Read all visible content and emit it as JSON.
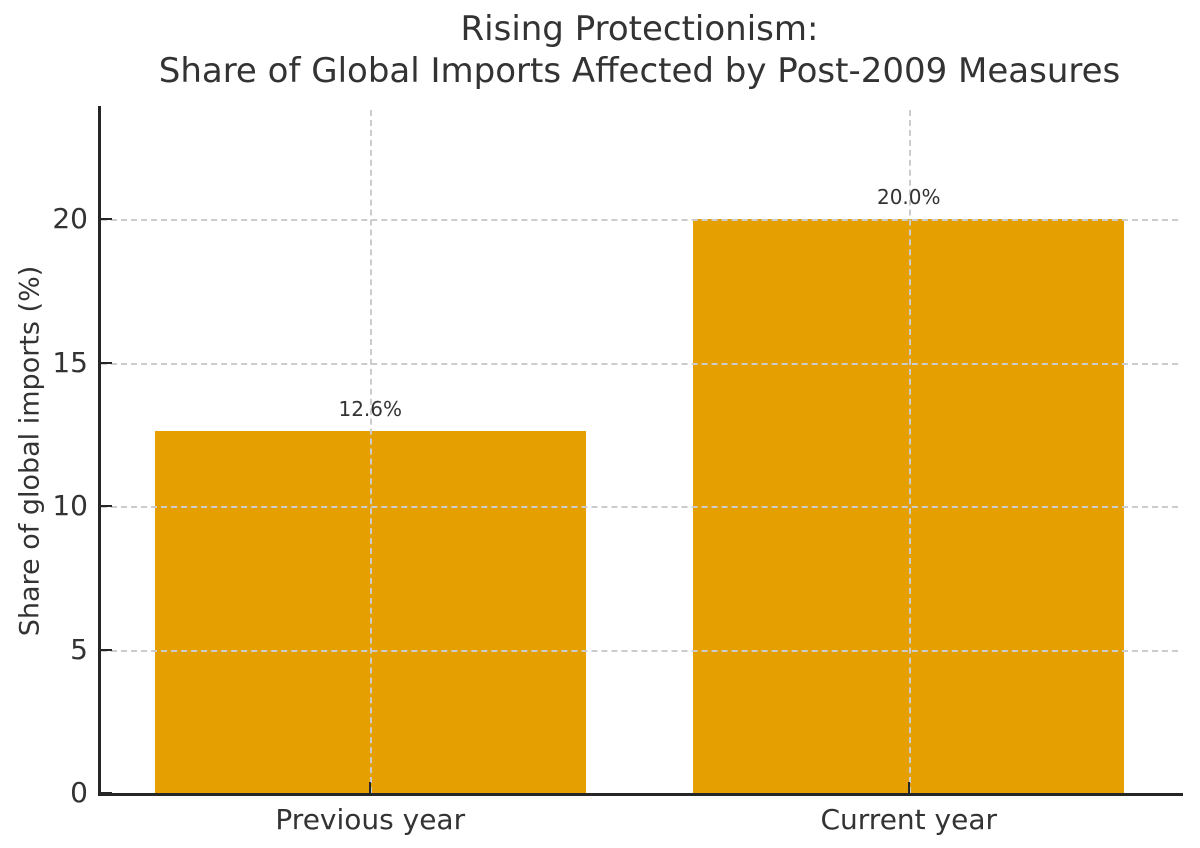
{
  "chart_data": {
    "type": "bar",
    "title_line1": "Rising Protectionism:",
    "title_line2": "Share of Global Imports Affected by Post-2009 Measures",
    "categories": [
      "Previous year",
      "Current year"
    ],
    "values": [
      12.6,
      20.0
    ],
    "value_labels": [
      "12.6%",
      "20.0%"
    ],
    "xlabel": "",
    "ylabel": "Share of global imports (%)",
    "yticks": [
      0,
      5,
      10,
      15,
      20
    ],
    "ylim": [
      0,
      23.8
    ],
    "bar_width_fraction": 0.8,
    "bar_color": "#E69F00",
    "grid": "dashed",
    "grid_color": "#cccccc",
    "grid_above_bars": true,
    "axis_color": "#262626",
    "text_color": "#333333",
    "background": "#ffffff",
    "legend": "none"
  }
}
